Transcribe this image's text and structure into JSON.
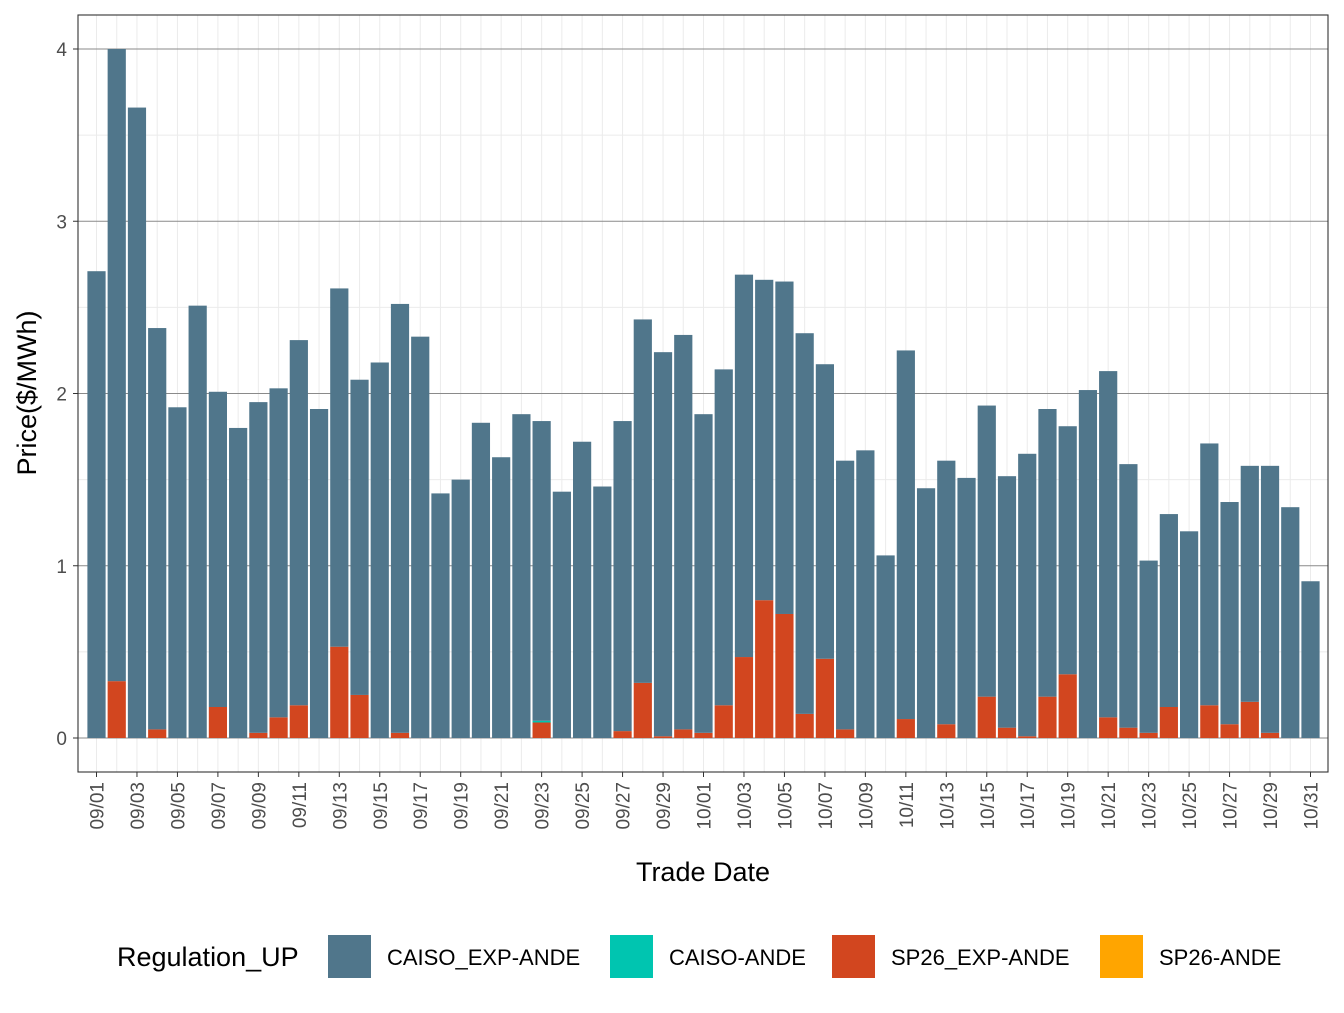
{
  "chart_data": {
    "type": "bar",
    "stacked": true,
    "xlabel": "Trade Date",
    "ylabel": "Price($/MWh)",
    "ylim": [
      0,
      4
    ],
    "yticks": [
      0,
      1,
      2,
      3,
      4
    ],
    "grid": true,
    "legend_position": "bottom",
    "legend_title": "Regulation_UP",
    "categories": [
      "09/01",
      "09/02",
      "09/03",
      "09/04",
      "09/05",
      "09/06",
      "09/07",
      "09/08",
      "09/09",
      "09/10",
      "09/11",
      "09/12",
      "09/13",
      "09/14",
      "09/15",
      "09/16",
      "09/17",
      "09/18",
      "09/19",
      "09/20",
      "09/21",
      "09/22",
      "09/23",
      "09/24",
      "09/25",
      "09/26",
      "09/27",
      "09/28",
      "09/29",
      "09/30",
      "10/01",
      "10/02",
      "10/03",
      "10/04",
      "10/05",
      "10/06",
      "10/07",
      "10/08",
      "10/09",
      "10/10",
      "10/11",
      "10/12",
      "10/13",
      "10/14",
      "10/15",
      "10/16",
      "10/17",
      "10/18",
      "10/19",
      "10/20",
      "10/21",
      "10/22",
      "10/23",
      "10/24",
      "10/25",
      "10/26",
      "10/27",
      "10/28",
      "10/29",
      "10/30",
      "10/31"
    ],
    "tick_labels": [
      "09/01",
      "09/03",
      "09/05",
      "09/07",
      "09/09",
      "09/11",
      "09/13",
      "09/15",
      "09/17",
      "09/19",
      "09/21",
      "09/23",
      "09/25",
      "09/27",
      "09/29",
      "10/01",
      "10/03",
      "10/05",
      "10/07",
      "10/09",
      "10/11",
      "10/13",
      "10/15",
      "10/17",
      "10/19",
      "10/21",
      "10/23",
      "10/25",
      "10/27",
      "10/29",
      "10/31"
    ],
    "series": [
      {
        "name": "CAISO_EXP-ANDE",
        "color": "#50768B",
        "values": [
          2.71,
          3.67,
          3.66,
          2.33,
          1.92,
          2.51,
          1.83,
          1.8,
          1.92,
          1.91,
          2.12,
          1.91,
          2.08,
          1.83,
          2.18,
          2.49,
          2.33,
          1.42,
          1.5,
          1.83,
          1.63,
          1.88,
          1.74,
          1.43,
          1.72,
          1.46,
          1.8,
          2.11,
          2.23,
          2.29,
          1.85,
          1.95,
          2.22,
          1.86,
          1.93,
          2.21,
          1.71,
          1.56,
          1.67,
          1.06,
          2.14,
          1.45,
          1.53,
          1.51,
          1.69,
          1.46,
          1.64,
          1.67,
          1.44,
          2.02,
          2.01,
          1.53,
          1.0,
          1.12,
          1.2,
          1.52,
          1.29,
          1.37,
          1.55,
          1.34,
          0.91
        ]
      },
      {
        "name": "CAISO-ANDE",
        "color": "#00C5B0",
        "values": [
          0,
          0,
          0,
          0,
          0,
          0,
          0,
          0,
          0,
          0,
          0,
          0,
          0,
          0,
          0,
          0,
          0,
          0,
          0,
          0,
          0,
          0,
          0.01,
          0,
          0,
          0,
          0,
          0,
          0,
          0,
          0,
          0,
          0,
          0,
          0,
          0,
          0,
          0,
          0,
          0,
          0,
          0,
          0,
          0,
          0,
          0,
          0,
          0,
          0,
          0,
          0,
          0,
          0,
          0,
          0,
          0,
          0,
          0,
          0,
          0,
          0
        ]
      },
      {
        "name": "SP26_EXP-ANDE",
        "color": "#D2461F",
        "values": [
          0,
          0.33,
          0,
          0.05,
          0,
          0,
          0.18,
          0,
          0.03,
          0.12,
          0.19,
          0,
          0.53,
          0.25,
          0,
          0.03,
          0,
          0,
          0,
          0,
          0,
          0,
          0.09,
          0,
          0,
          0,
          0.04,
          0.32,
          0.01,
          0.05,
          0.03,
          0.19,
          0.47,
          0.8,
          0.72,
          0.14,
          0.46,
          0.05,
          0,
          0,
          0.11,
          0,
          0.08,
          0,
          0.24,
          0.06,
          0.01,
          0.24,
          0.37,
          0,
          0.12,
          0.06,
          0.03,
          0.18,
          0,
          0.19,
          0.08,
          0.21,
          0.03,
          0,
          0
        ]
      },
      {
        "name": "SP26-ANDE",
        "color": "#FFA500",
        "values": [
          0,
          0,
          0,
          0,
          0,
          0,
          0,
          0,
          0,
          0,
          0,
          0,
          0,
          0,
          0,
          0,
          0,
          0,
          0,
          0,
          0,
          0,
          0,
          0,
          0,
          0,
          0,
          0,
          0,
          0,
          0,
          0,
          0,
          0,
          0,
          0,
          0,
          0,
          0,
          0,
          0,
          0,
          0,
          0,
          0,
          0,
          0,
          0,
          0,
          0,
          0,
          0,
          0,
          0,
          0,
          0,
          0,
          0,
          0,
          0,
          0
        ]
      }
    ]
  }
}
